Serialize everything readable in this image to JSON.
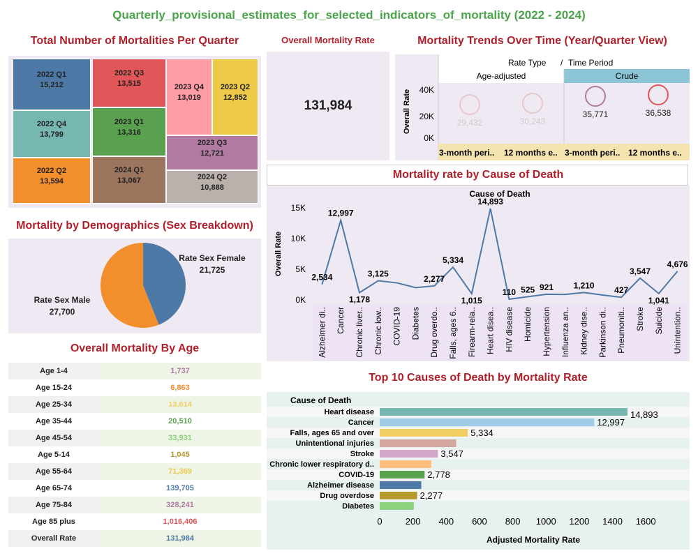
{
  "title": "Quarterly_provisional_estimates_for_selected_indicators_of_mortality (2022 - 2024)",
  "sections": {
    "treemap_title": "Total Number of Mortalities Per Quarter",
    "kpi_title": "Overall Mortality Rate",
    "trends_title": "Mortality Trends Over Time (Year/Quarter View)",
    "cause_title": "Mortality rate by Cause of Death",
    "sex_title": "Mortality by Demographics (Sex Breakdown)",
    "age_title": "Overall Mortality By Age",
    "top10_title": "Top 10 Causes of Death by Mortality Rate"
  },
  "kpi": {
    "value": "131,984"
  },
  "treemap": [
    {
      "label": "2022 Q1",
      "value": "15,212",
      "color": "#4e79a7"
    },
    {
      "label": "2022 Q3",
      "value": "13,515",
      "color": "#e15759"
    },
    {
      "label": "2023 Q4",
      "value": "13,019",
      "color": "#ff9da7"
    },
    {
      "label": "2023 Q2",
      "value": "12,852",
      "color": "#edc948"
    },
    {
      "label": "2022 Q4",
      "value": "13,799",
      "color": "#76b7b2"
    },
    {
      "label": "2023 Q1",
      "value": "13,316",
      "color": "#59a14f"
    },
    {
      "label": "2023 Q3",
      "value": "12,721",
      "color": "#b07aa1"
    },
    {
      "label": "2022 Q2",
      "value": "13,594",
      "color": "#f28e2b"
    },
    {
      "label": "2024 Q1",
      "value": "13,067",
      "color": "#9c755f"
    },
    {
      "label": "2024 Q2",
      "value": "10,888",
      "color": "#bab0ac"
    }
  ],
  "trends": {
    "header_left": "Rate Type",
    "header_sep": "/",
    "header_right": "Time Period",
    "ylabel": "Overall Rate",
    "yticks": [
      "40K",
      "20K",
      "0K"
    ],
    "groups": [
      "Age-adjusted",
      "Crude"
    ],
    "periods": [
      "3-month peri..",
      "12 months e..",
      "3-month peri..",
      "12 months e.."
    ],
    "values": [
      "29,432",
      "30,243",
      "35,771",
      "36,538"
    ]
  },
  "sex": {
    "female_label": "Rate Sex Female",
    "female_value": "21,725",
    "male_label": "Rate Sex Male",
    "male_value": "27,700",
    "colors": {
      "female": "#4e79a7",
      "male": "#f28e2b"
    }
  },
  "age": [
    {
      "label": "Age 1-4",
      "value": "1,737",
      "color": "#b07aa1"
    },
    {
      "label": "Age 15-24",
      "value": "6,863",
      "color": "#f28e2b"
    },
    {
      "label": "Age 25-34",
      "value": "13,614",
      "color": "#f1ce63"
    },
    {
      "label": "Age 35-44",
      "value": "20,510",
      "color": "#59a14f"
    },
    {
      "label": "Age 45-54",
      "value": "33,931",
      "color": "#8cd17d"
    },
    {
      "label": "Age 5-14",
      "value": "1,045",
      "color": "#b6992d"
    },
    {
      "label": "Age 55-64",
      "value": "71,369",
      "color": "#edc948"
    },
    {
      "label": "Age 65-74",
      "value": "139,705",
      "color": "#4e79a7"
    },
    {
      "label": "Age 75-84",
      "value": "328,241",
      "color": "#b07aa1"
    },
    {
      "label": "Age 85 plus",
      "value": "1,016,406",
      "color": "#e15759"
    },
    {
      "label": "Overall Rate",
      "value": "131,984",
      "color": "#4e79a7"
    }
  ],
  "chart_data": [
    {
      "type": "line",
      "title": "Cause of Death",
      "ylabel": "Overall Rate",
      "ylim": [
        0,
        15000
      ],
      "yticks": [
        "15K",
        "10K",
        "5K",
        "0K"
      ],
      "categories": [
        "Alzheimer di..",
        "Cancer",
        "Chronic liver..",
        "Chronic low..",
        "COVID-19",
        "Diabetes",
        "Drug overdo..",
        "Falls, ages 6..",
        "Firearm-rela..",
        "Heart disea..",
        "HIV disease",
        "Homicide",
        "Hypertension",
        "Influenza an..",
        "Kidney dise..",
        "Parkinson di..",
        "Pneumoniti..",
        "Stroke",
        "Suicide",
        "Unintention.."
      ],
      "values": [
        2534,
        12997,
        1178,
        3125,
        2778,
        2000,
        2277,
        5334,
        1015,
        14893,
        110,
        525,
        921,
        900,
        1210,
        800,
        427,
        3547,
        1041,
        4676
      ],
      "labels": [
        "2,534",
        "12,997",
        "1,178",
        "3,125",
        "",
        "",
        "2,277",
        "5,334",
        "1,015",
        "14,893",
        "110",
        "525",
        "921",
        "",
        "1,210",
        "",
        "427",
        "3,547",
        "1,041",
        "4,676"
      ],
      "color": "#4e79a7"
    },
    {
      "type": "bar",
      "title": "",
      "header": "Cause of Death",
      "xlabel": "Adjusted Mortality Rate",
      "xlim": [
        0,
        1700
      ],
      "xticks": [
        0,
        200,
        400,
        600,
        800,
        1000,
        1200,
        1400,
        1600
      ],
      "categories": [
        "Heart disease",
        "Cancer",
        "Falls, ages 65 and over",
        "Unintentional injuries",
        "Stroke",
        "Chronic lower respiratory d..",
        "COVID-19",
        "Alzheimer disease",
        "Drug overdose",
        "Diabetes"
      ],
      "values": [
        1490,
        1290,
        530,
        460,
        350,
        310,
        270,
        250,
        225,
        205
      ],
      "labels": [
        "14,893",
        "12,997",
        "5,334",
        "",
        "3,547",
        "",
        "2,778",
        "",
        "2,277",
        ""
      ],
      "colors": [
        "#76b7b2",
        "#a0cbe8",
        "#f1ce63",
        "#d4a6a0",
        "#d4a6c8",
        "#ffbe7d",
        "#59a14f",
        "#4e79a7",
        "#b6992d",
        "#8cd17d"
      ]
    }
  ]
}
